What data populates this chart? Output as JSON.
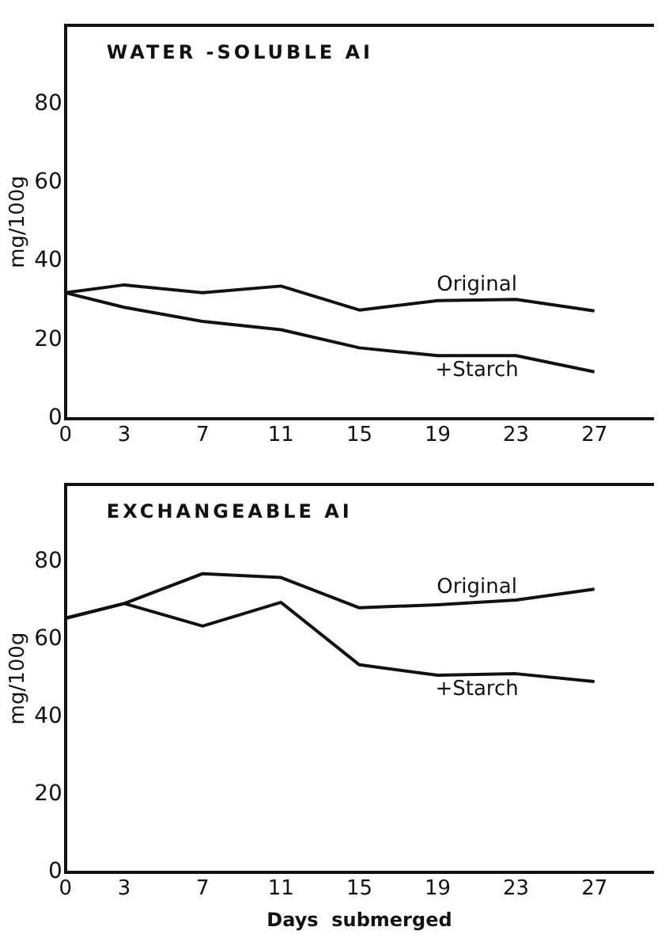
{
  "chart_data": [
    {
      "type": "line",
      "title": "WATER -SOLUBLE AI",
      "ylabel": "mg/100g",
      "x": [
        0,
        3,
        7,
        11,
        15,
        19,
        23,
        27
      ],
      "xlim": [
        0,
        30
      ],
      "xticks": [
        0,
        3,
        7,
        11,
        15,
        19,
        23,
        27
      ],
      "ylim": [
        0,
        100
      ],
      "yticks": [
        0,
        20,
        40,
        60,
        80
      ],
      "grid": false,
      "legend": false,
      "marker": "none",
      "line_style": "solid",
      "series": [
        {
          "name": "Original",
          "color": "#111111",
          "values": [
            32,
            34,
            32,
            33.7,
            27.6,
            30,
            30.3,
            27.4
          ]
        },
        {
          "name": "+Starch",
          "color": "#111111",
          "values": [
            32,
            28.3,
            24.7,
            22.6,
            18,
            16,
            16,
            11.9
          ]
        }
      ]
    },
    {
      "type": "line",
      "title": "EXCHANGEABLE AI",
      "xlabel": "Days  submerged",
      "ylabel": "mg/100g",
      "x": [
        0,
        3,
        7,
        11,
        15,
        19,
        23,
        27
      ],
      "xlim": [
        0,
        30
      ],
      "xticks": [
        0,
        3,
        7,
        11,
        15,
        19,
        23,
        27
      ],
      "ylim": [
        0,
        100
      ],
      "yticks": [
        0,
        20,
        40,
        60,
        80
      ],
      "grid": false,
      "legend": false,
      "marker": "none",
      "line_style": "solid",
      "series": [
        {
          "name": "Original",
          "color": "#111111",
          "values": [
            65.5,
            69.3,
            77,
            76,
            68.2,
            69,
            70.2,
            73
          ]
        },
        {
          "name": "+Starch",
          "color": "#111111",
          "values": [
            65.5,
            69.3,
            63.5,
            69.6,
            53.5,
            50.8,
            51.2,
            49.2
          ]
        }
      ]
    }
  ]
}
